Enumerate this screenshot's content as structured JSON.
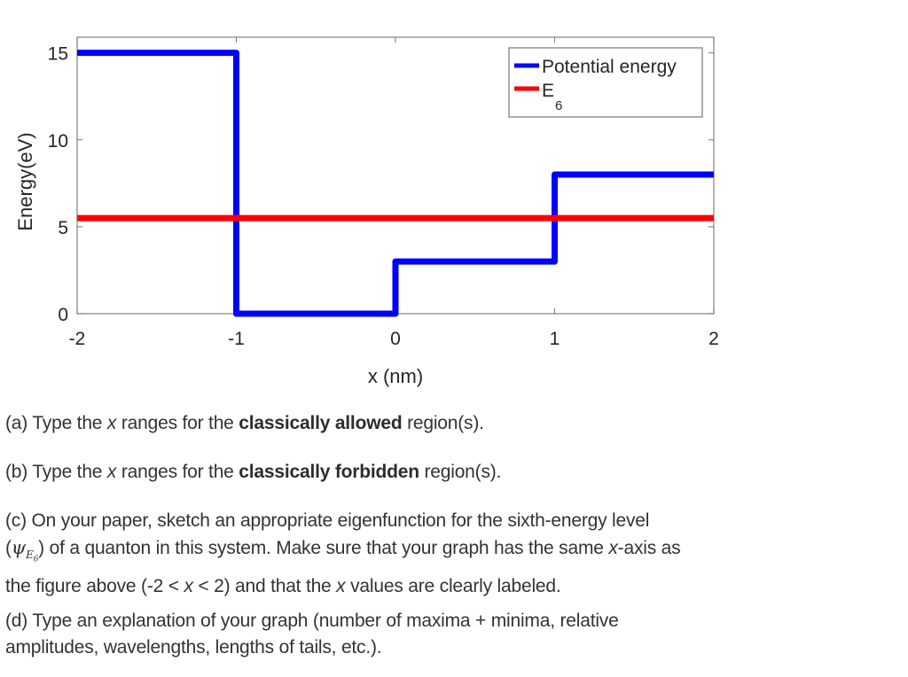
{
  "chart_data": {
    "type": "line",
    "title": "",
    "xlabel": "x (nm)",
    "ylabel": "Energy(eV)",
    "xlim": [
      -2,
      2
    ],
    "ylim": [
      0,
      15
    ],
    "xticks": [
      -2,
      -1,
      0,
      1,
      2
    ],
    "xtick_labels": [
      "-2",
      "-1",
      "0",
      "1",
      "2"
    ],
    "yticks": [
      0,
      5,
      10,
      15
    ],
    "ytick_labels": [
      "0",
      "5",
      "10",
      "15"
    ],
    "grid": false,
    "legend_position": "upper right",
    "series": [
      {
        "name": "Potential energy",
        "color": "#0000ff",
        "style": "step",
        "x": [
          -2,
          -1,
          -1,
          0,
          0,
          1,
          1,
          2
        ],
        "y": [
          15,
          15,
          0,
          0,
          3,
          3,
          8,
          8
        ]
      },
      {
        "name": "E6",
        "color": "#ff0000",
        "style": "line",
        "x": [
          -2,
          2
        ],
        "y": [
          5.5,
          5.5
        ]
      }
    ]
  },
  "legend": {
    "items": [
      {
        "label": "Potential energy",
        "color": "#0000ff"
      },
      {
        "label_main": "E",
        "label_sub": "6",
        "color": "#ff0000"
      }
    ]
  },
  "questions": {
    "a": {
      "prefix": "(a)  Type the ",
      "var": "x",
      "mid": " ranges for the ",
      "bold": "classically allowed",
      "suffix": " region(s)."
    },
    "b": {
      "prefix": "(b)  Type the ",
      "var": "x",
      "mid": " ranges for the ",
      "bold": "classically forbidden",
      "suffix": " region(s)."
    },
    "c": {
      "line1": "(c)  On your paper, sketch an appropriate eigenfunction for the sixth-energy level",
      "psi_open": "(",
      "psi_symbol": "ψ",
      "psi_sub": "E",
      "psi_subsub": "6",
      "psi_close": ")",
      "line2_rest_a": " of a quanton in this system.  Make sure that your graph has the same ",
      "line2_var": "x",
      "line2_rest_b": "-axis as",
      "line3_a": "the figure above (-2 < ",
      "line3_var": "x",
      "line3_b": " < 2) and that the ",
      "line3_var2": "x",
      "line3_c": " values are clearly labeled."
    },
    "d": {
      "line1": "(d) Type an explanation of your graph (number of maxima + minima, relative",
      "line2": "amplitudes, wavelengths, lengths of tails, etc.)."
    }
  }
}
